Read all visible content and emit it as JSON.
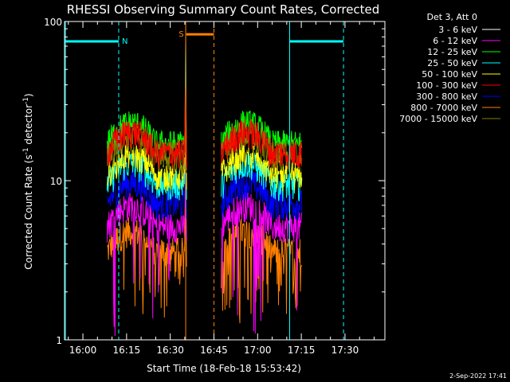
{
  "chart_data": {
    "type": "line",
    "title": "RHESSI Observing Summary Count Rates, Corrected",
    "xlabel": "Start Time (18-Feb-18 15:53:42)",
    "ylabel": "Corrected Count Rate (s",
    "ylabel_sup1": "-1",
    "ylabel_mid": " detector",
    "ylabel_sup2": "-1",
    "ylabel_end": ")",
    "yscale": "log",
    "ylim": [
      1,
      100
    ],
    "xlim_minutes": [
      -6.3,
      103.7
    ],
    "x_ticks": [
      {
        "label": "16:00",
        "minutes": 0
      },
      {
        "label": "16:15",
        "minutes": 15
      },
      {
        "label": "16:30",
        "minutes": 30
      },
      {
        "label": "16:45",
        "minutes": 45
      },
      {
        "label": "17:00",
        "minutes": 60
      },
      {
        "label": "17:15",
        "minutes": 75
      },
      {
        "label": "17:30",
        "minutes": 90
      }
    ],
    "y_ticks": [
      {
        "label": "1",
        "value": 1
      },
      {
        "label": "10",
        "value": 10
      },
      {
        "label": "100",
        "value": 100
      }
    ],
    "legend_header": "Det 3, Att 0",
    "series": [
      {
        "name": "3 - 6 keV",
        "color": "#000000",
        "level": 14
      },
      {
        "name": "6 - 12 keV",
        "color": "#ff00ff",
        "level": 5.2
      },
      {
        "name": "12 - 25 keV",
        "color": "#00ff00",
        "level": 17
      },
      {
        "name": "25 - 50 keV",
        "color": "#00ffff",
        "level": 9.5
      },
      {
        "name": "50 - 100 keV",
        "color": "#ffff00",
        "level": 11
      },
      {
        "name": "100 - 300 keV",
        "color": "#ff0000",
        "level": 15
      },
      {
        "name": "300 - 800 keV",
        "color": "#0000ff",
        "level": 7.2
      },
      {
        "name": "800 - 7000 keV",
        "color": "#ff8000",
        "level": 3.6
      },
      {
        "name": "7000 - 15000 keV",
        "color": "#808000",
        "level": 14.5
      }
    ],
    "segments": [
      {
        "start_min": 8.3,
        "end_min": 35.0
      },
      {
        "start_min": 47.5,
        "end_min": 75.3
      }
    ],
    "flare_peak": {
      "min": 35.3,
      "value": 80
    },
    "night_bars": [
      {
        "label": "N",
        "start_min": -6.3,
        "end_min": 12.3,
        "value": 75,
        "color": "#00ffff"
      },
      {
        "label": "",
        "start_min": 71.0,
        "end_min": 89.5,
        "value": 75,
        "color": "#00ffff"
      }
    ],
    "saa_bars": [
      {
        "label": "S",
        "start_min": 35.5,
        "end_min": 45.0,
        "value": 83,
        "color": "#ff8000"
      }
    ],
    "markers": [
      {
        "min": -6.0,
        "style": "solid",
        "color": "#00ffff"
      },
      {
        "min": 12.3,
        "style": "dashed",
        "color": "#00ffff"
      },
      {
        "min": 35.3,
        "style": "solid",
        "color": "#ff8000"
      },
      {
        "min": 45.0,
        "style": "dashed",
        "color": "#ff8000"
      },
      {
        "min": 71.0,
        "style": "solid",
        "color": "#00ffff"
      },
      {
        "min": 89.5,
        "style": "dashed",
        "color": "#00ffff"
      }
    ],
    "footer": "2-Sep-2022 17:41"
  }
}
